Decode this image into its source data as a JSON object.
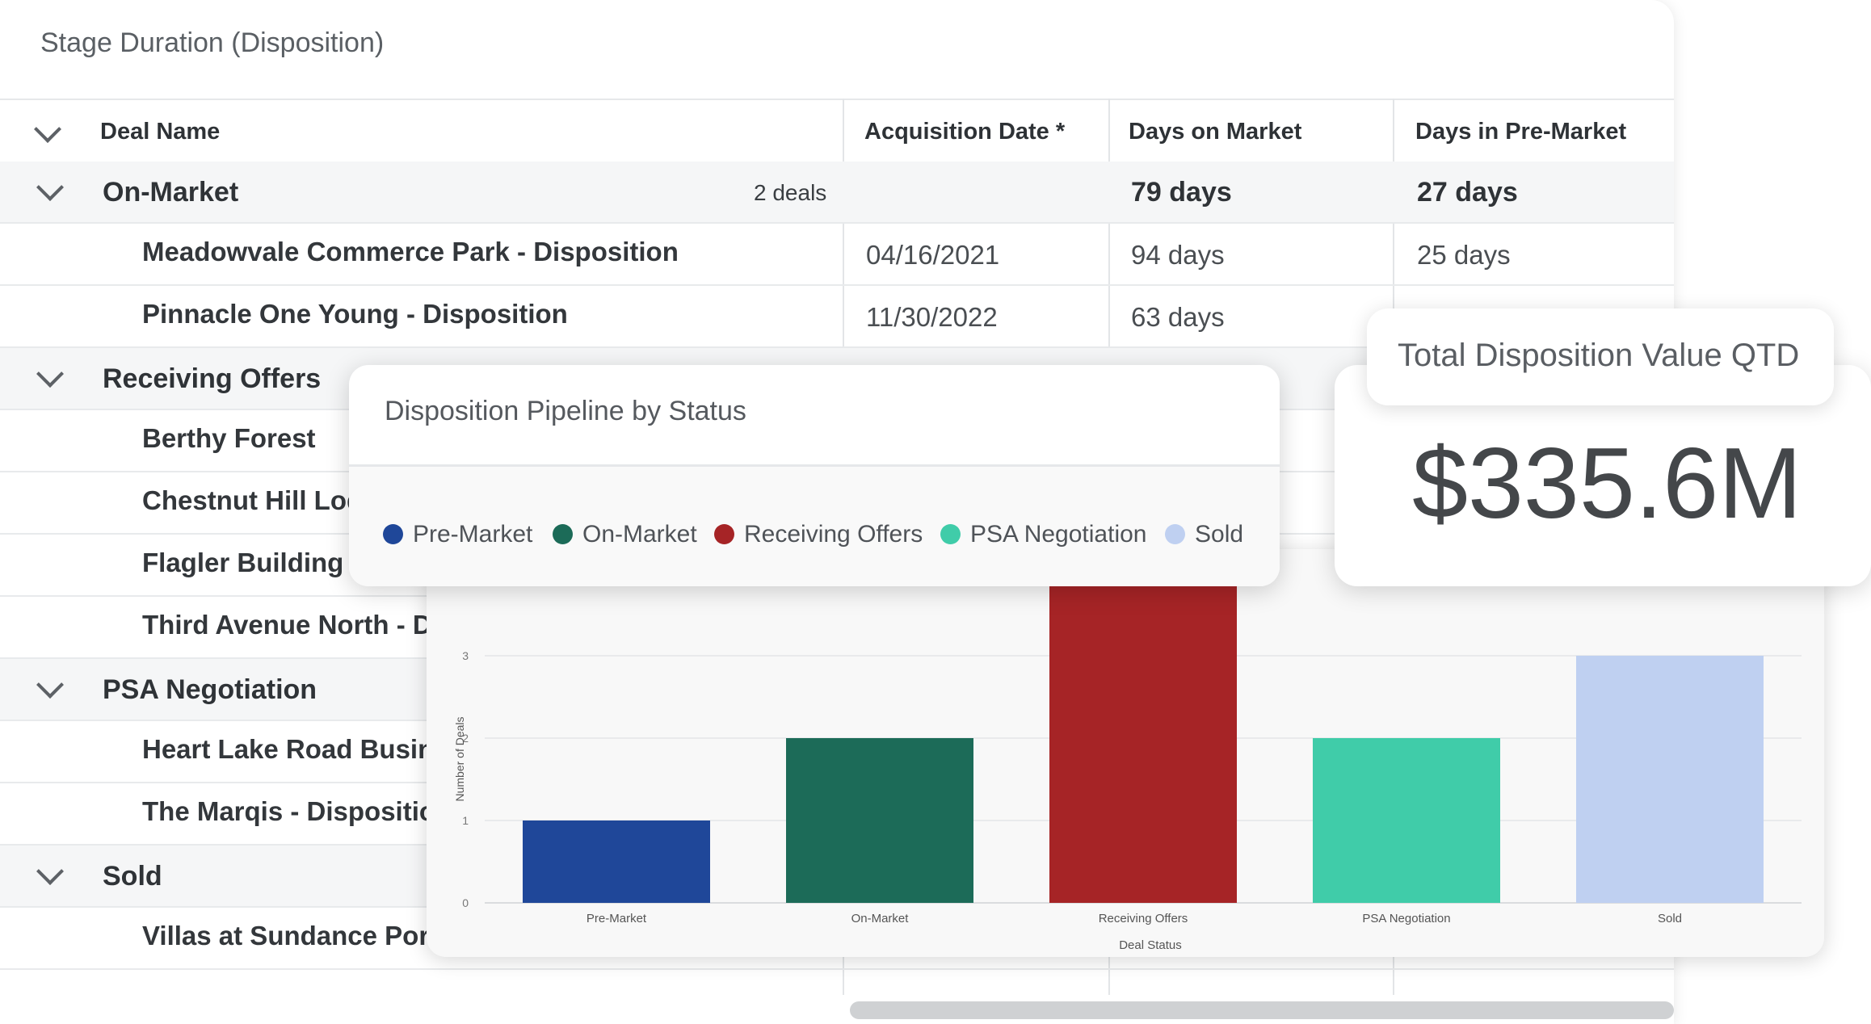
{
  "table": {
    "title": "Stage Duration (Disposition)",
    "columns": {
      "deal_name": "Deal Name",
      "acquisition_date": "Acquisition Date *",
      "days_on_market": "Days on Market",
      "days_in_premarket": "Days in Pre-Market"
    },
    "groups": {
      "on_market": {
        "name": "On-Market",
        "count": "2 deals",
        "days_on_market": "79 days",
        "days_in_premarket": "27 days"
      },
      "receiving_offers": {
        "name": "Receiving Offers"
      },
      "psa_negotiation": {
        "name": "PSA Negotiation"
      },
      "sold": {
        "name": "Sold"
      }
    },
    "deals": [
      {
        "name": "Meadowvale Commerce Park - Disposition",
        "acquisition_date": "04/16/2021",
        "days_on_market": "94 days",
        "days_in_premarket": "25 days"
      },
      {
        "name": "Pinnacle One Young - Disposition",
        "acquisition_date": "11/30/2022",
        "days_on_market": "63 days",
        "days_in_premarket": ""
      },
      {
        "name": "Berthy Forest"
      },
      {
        "name": "Chestnut Hill Lod"
      },
      {
        "name": "Flagler Building -"
      },
      {
        "name": "Third Avenue North - Di"
      },
      {
        "name": "Heart Lake Road Busin"
      },
      {
        "name": "The Marqis - Dispositio"
      },
      {
        "name": "Villas at Sundance Port"
      }
    ]
  },
  "pipeline": {
    "title": "Disposition Pipeline by Status",
    "legend": [
      "Pre-Market",
      "On-Market",
      "Receiving Offers",
      "PSA Negotiation",
      "Sold"
    ]
  },
  "kpi": {
    "label": "Total Disposition Value QTD",
    "value": "$335.6M"
  },
  "chart_data": {
    "type": "bar",
    "categories": [
      "Pre-Market",
      "On-Market",
      "Receiving Offers",
      "PSA Negotiation",
      "Sold"
    ],
    "values": [
      1,
      2,
      4,
      2,
      3
    ],
    "colors": [
      "#1f4799",
      "#1c6b58",
      "#a62426",
      "#40cca9",
      "#bfd0f1"
    ],
    "xlabel": "Deal Status",
    "ylabel": "Number of Deals",
    "yticks": [
      "0",
      "1",
      "2",
      "3"
    ],
    "ylim": [
      0,
      4
    ],
    "grid": true
  }
}
